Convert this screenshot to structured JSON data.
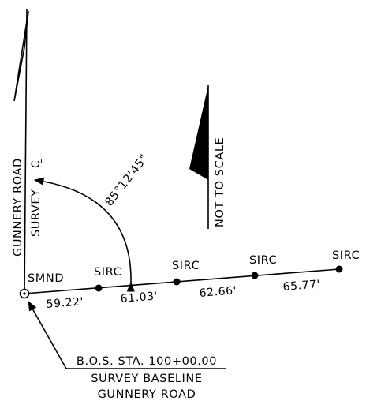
{
  "road_name": "GUNNERY ROAD",
  "survey_cl_label": "SURVEY",
  "centerline_symbol": "CL (centerline) symbol",
  "angle": "85°12'45\"",
  "north_note": "NOT TO SCALE",
  "start_monument": "SMND",
  "monuments": [
    "SIRC",
    "SIRC",
    "SIRC",
    "SIRC"
  ],
  "distances": [
    "59.22'",
    "61.03'",
    "62.66'",
    "65.77'"
  ],
  "callout": {
    "line1": "B.O.S. STA. 100+00.00",
    "line2": "SURVEY BASELINE",
    "line3": "GUNNERY ROAD"
  }
}
